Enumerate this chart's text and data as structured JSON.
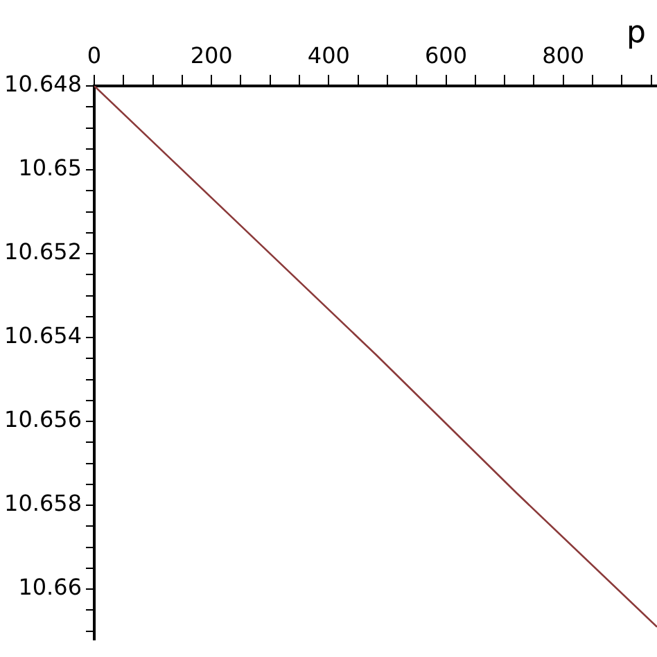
{
  "chart_data": {
    "type": "line",
    "xlabel": "p",
    "x": [
      0,
      240,
      480,
      720,
      960
    ],
    "series": [
      {
        "color": "#8b3a3a",
        "values": [
          10.648,
          10.6512,
          10.6544,
          10.6577,
          10.6609
        ]
      }
    ],
    "xlim": [
      0,
      960
    ],
    "ylim": [
      10.6612,
      10.648
    ],
    "xticks": [
      0,
      {
        "value": 50,
        "label": null
      },
      {
        "value": 100,
        "label": null
      },
      {
        "value": 150,
        "label": null
      },
      200,
      {
        "value": 250,
        "label": null
      },
      {
        "value": 300,
        "label": null
      },
      {
        "value": 350,
        "label": null
      },
      400,
      {
        "value": 450,
        "label": null
      },
      {
        "value": 500,
        "label": null
      },
      {
        "value": 550,
        "label": null
      },
      600,
      {
        "value": 650,
        "label": null
      },
      {
        "value": 700,
        "label": null
      },
      {
        "value": 750,
        "label": null
      },
      800,
      {
        "value": 850,
        "label": null
      },
      {
        "value": 900,
        "label": null
      },
      {
        "value": 950,
        "label": null
      }
    ],
    "yticks": [
      10.648,
      {
        "value": 10.6485,
        "label": null
      },
      {
        "value": 10.649,
        "label": null
      },
      {
        "value": 10.6495,
        "label": null
      },
      10.65,
      {
        "value": 10.6505,
        "label": null
      },
      {
        "value": 10.651,
        "label": null
      },
      {
        "value": 10.6515,
        "label": null
      },
      10.652,
      {
        "value": 10.6525,
        "label": null
      },
      {
        "value": 10.653,
        "label": null
      },
      {
        "value": 10.6535,
        "label": null
      },
      10.654,
      {
        "value": 10.6545,
        "label": null
      },
      {
        "value": 10.655,
        "label": null
      },
      {
        "value": 10.6555,
        "label": null
      },
      10.656,
      {
        "value": 10.6565,
        "label": null
      },
      {
        "value": 10.657,
        "label": null
      },
      {
        "value": 10.6575,
        "label": null
      },
      10.658,
      {
        "value": 10.6585,
        "label": null
      },
      {
        "value": 10.659,
        "label": null
      },
      {
        "value": 10.6595,
        "label": null
      },
      10.66,
      {
        "value": 10.6605,
        "label": null
      },
      {
        "value": 10.661,
        "label": null
      }
    ],
    "grid": false,
    "legend": false,
    "marker": "none",
    "line_style": "solid"
  }
}
